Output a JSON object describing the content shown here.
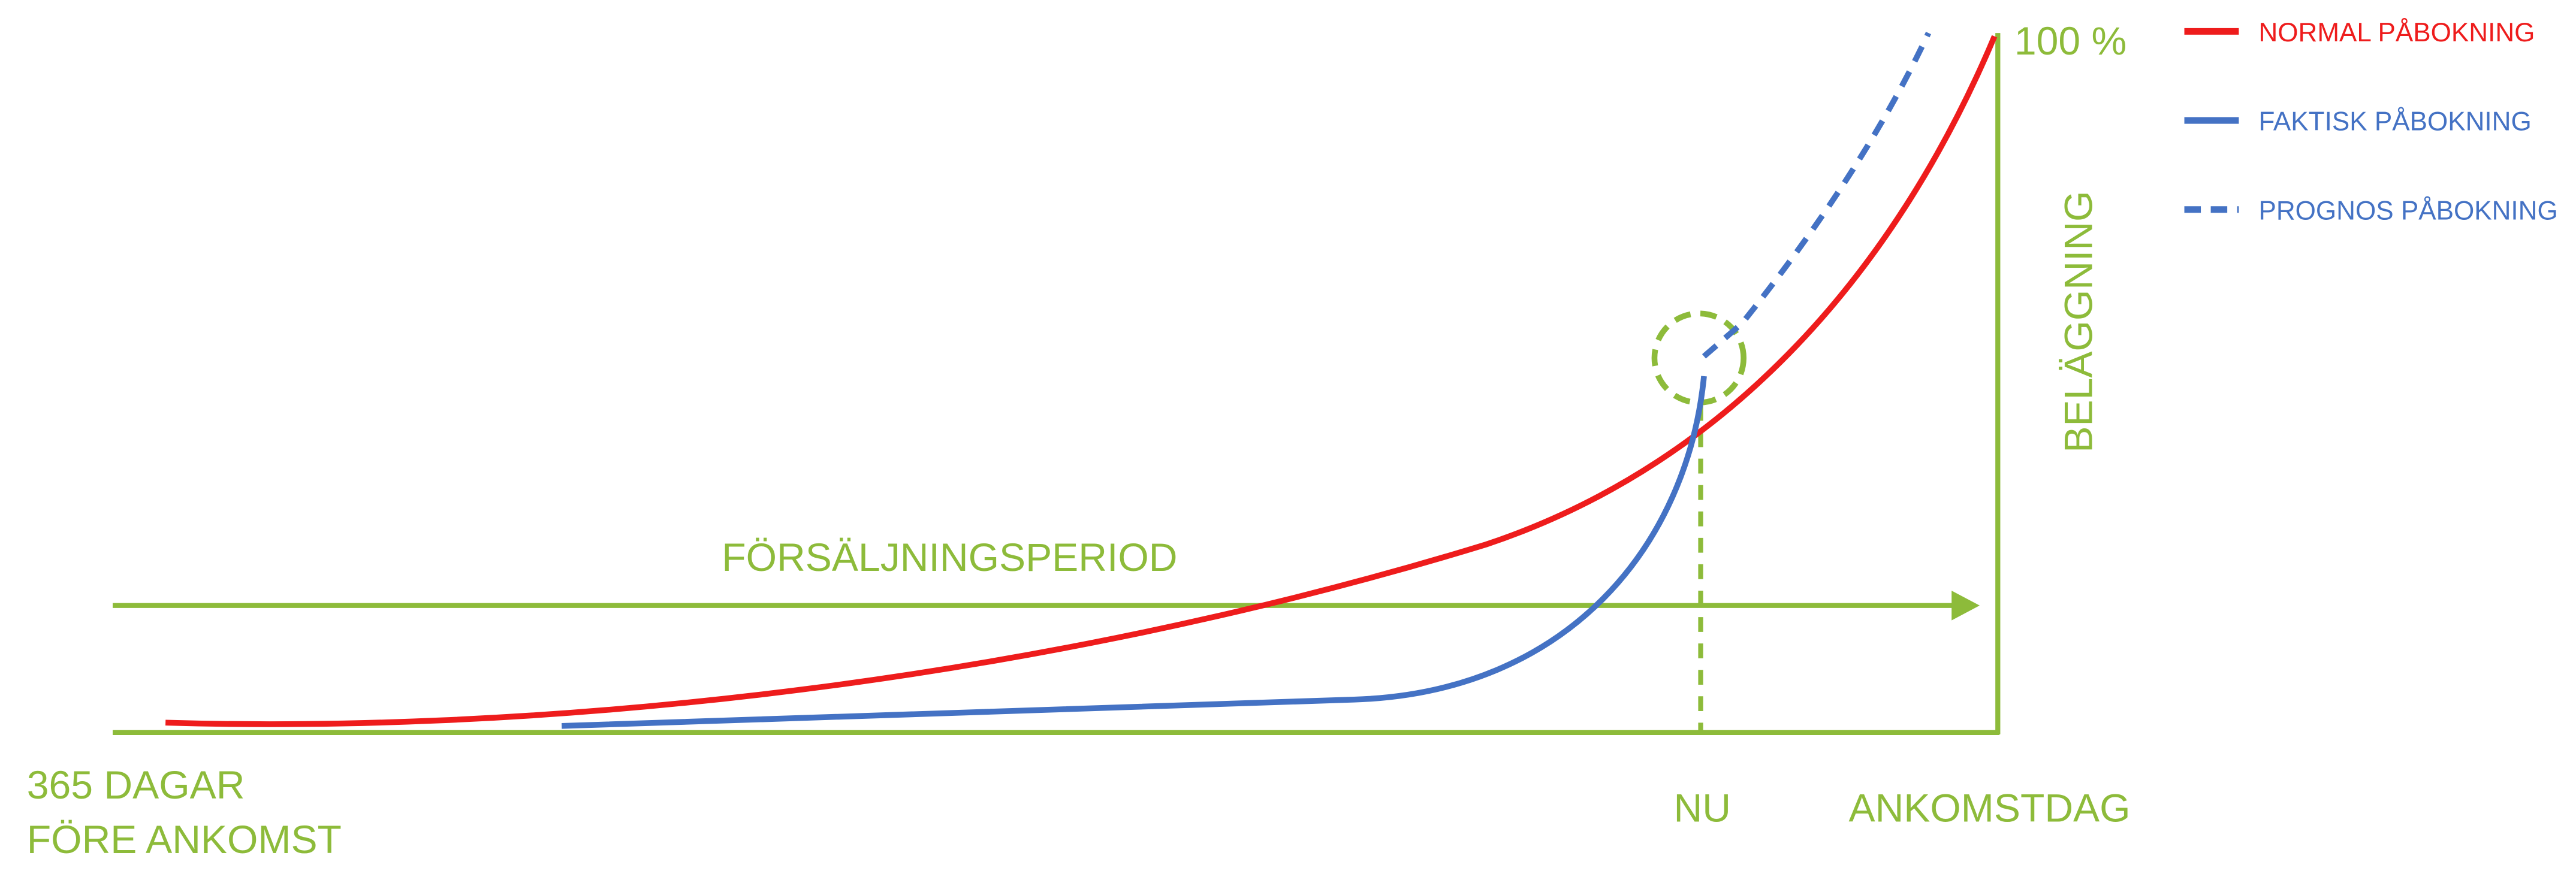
{
  "axis": {
    "top": "100 %",
    "y_label": "BELÄGGNING",
    "x_start": [
      "365 DAGAR",
      "FÖRE ANKOMST"
    ],
    "now": "NU",
    "x_end": "ANKOMSTDAG"
  },
  "period": "FÖRSÄLJNINGSPERIOD",
  "legend": [
    "NORMAL PÅBOKNING",
    "FAKTISK PÅBOKNING",
    "PROGNOS PÅBOKNING"
  ]
}
